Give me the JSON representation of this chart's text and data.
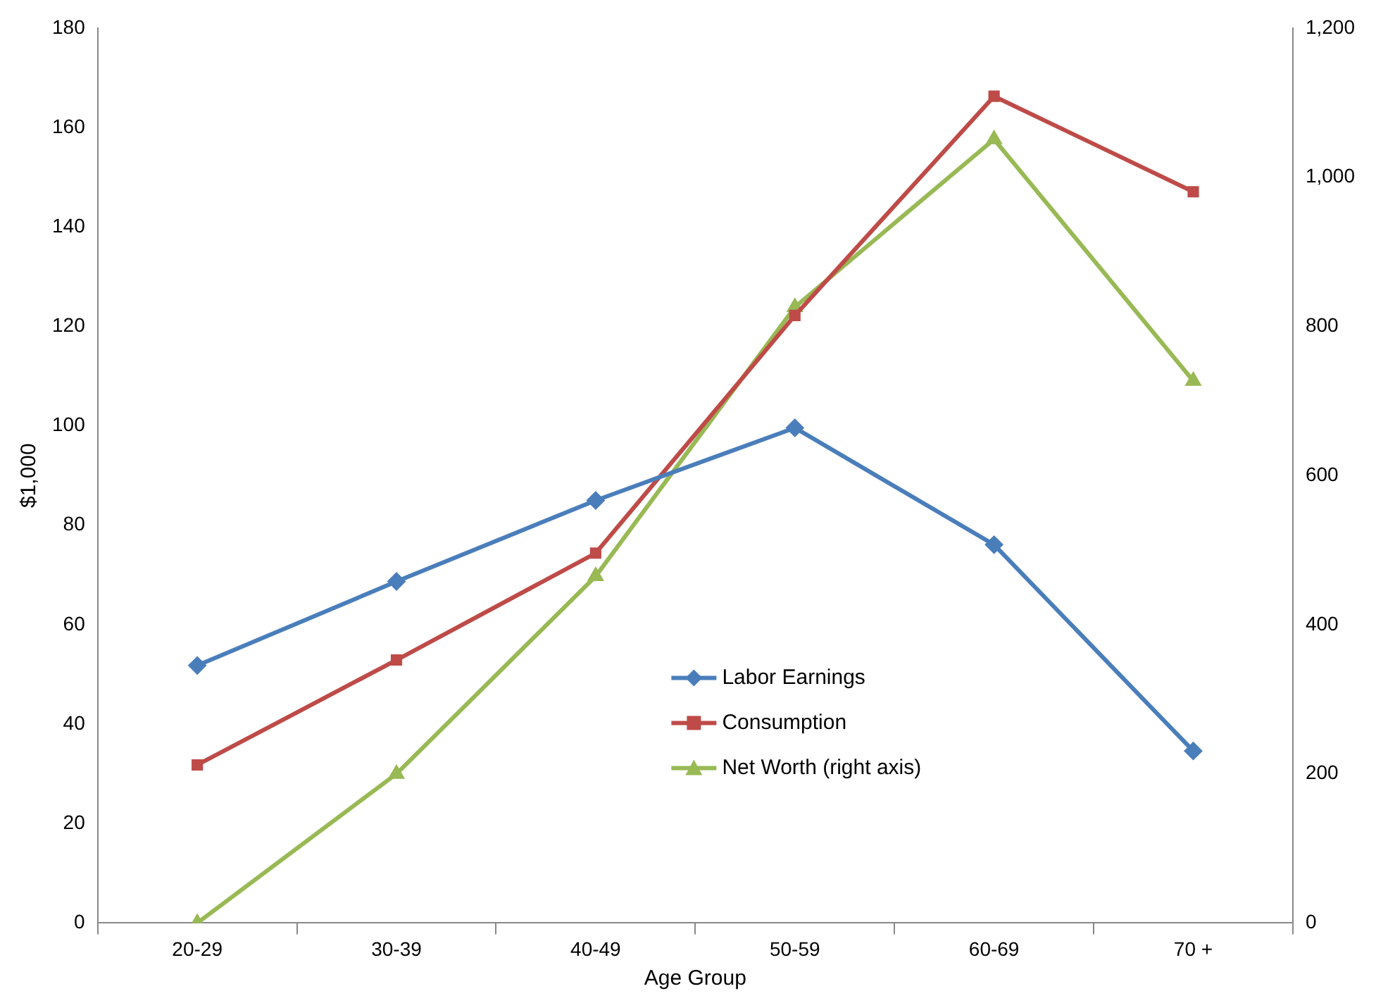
{
  "chart_data": {
    "type": "line",
    "xlabel": "Age Group",
    "ylabel": "$1,000",
    "categories": [
      "20-29",
      "30-39",
      "40-49",
      "50-59",
      "60-69",
      "70 +"
    ],
    "series": [
      {
        "name": "Labor Earnings",
        "color": "#4a7ebb",
        "marker": "diamond",
        "values": [
          51.8,
          68.7,
          85.0,
          99.6,
          76.1,
          34.6
        ]
      },
      {
        "name": "Consumption",
        "color": "#be4b48",
        "marker": "square",
        "values": [
          31.8,
          52.9,
          74.4,
          122.2,
          166.3,
          147.1
        ]
      },
      {
        "name": "Net Worth (right axis)",
        "color": "#98b954",
        "marker": "triangle",
        "axis": "y2",
        "values": [
          0,
          200,
          465,
          826,
          1051,
          727
        ]
      }
    ],
    "ylim": [
      0,
      180
    ],
    "yticks": [
      0,
      20,
      40,
      60,
      80,
      100,
      120,
      140,
      160,
      180
    ],
    "y2lim": [
      0,
      1200
    ],
    "y2ticks": [
      0,
      {
        "value": 200,
        "label": "200"
      },
      {
        "value": 400,
        "label": "400"
      },
      {
        "value": 600,
        "label": "600"
      },
      {
        "value": 800,
        "label": "800"
      },
      {
        "value": 1000,
        "label": "1,000"
      },
      {
        "value": 1200,
        "label": "1,200"
      }
    ],
    "grid": false,
    "legend": "bottom",
    "line_style": "solid"
  }
}
